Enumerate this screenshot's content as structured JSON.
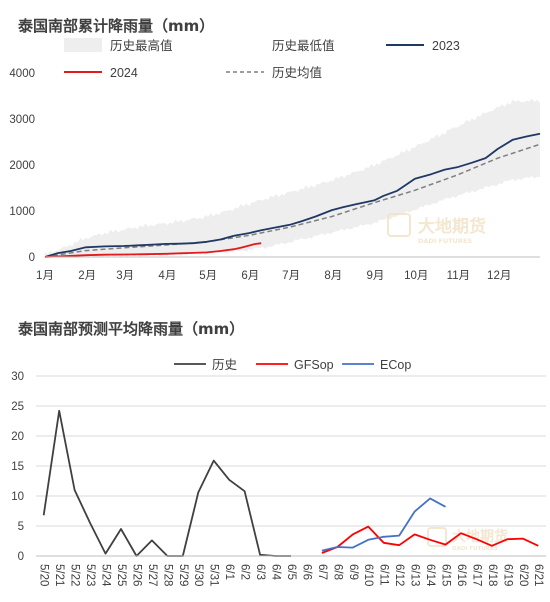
{
  "chart_data": [
    {
      "type": "area",
      "title": "泰国南部累计降雨量（mm）",
      "ylim": [
        0,
        4000
      ],
      "yticks": [
        0,
        1000,
        2000,
        3000,
        4000
      ],
      "x_unit": "day_of_year",
      "month_labels": [
        "1月",
        "2月",
        "3月",
        "4月",
        "5月",
        "6月",
        "7月",
        "8月",
        "9月",
        "10月",
        "11月",
        "12月"
      ],
      "grid": false,
      "legend_placement": "top",
      "watermark": "大地期货",
      "watermark_sub": "DADI FUTURES",
      "series": [
        {
          "name": "历史最高值",
          "style": "band_upper",
          "color": "#eeeeee",
          "x": [
            1,
            15,
            30,
            45,
            60,
            75,
            90,
            105,
            120,
            135,
            150,
            165,
            180,
            195,
            210,
            225,
            240,
            255,
            270,
            285,
            300,
            315,
            330,
            345,
            365
          ],
          "values": [
            60,
            200,
            400,
            520,
            600,
            680,
            730,
            800,
            880,
            1000,
            1150,
            1280,
            1400,
            1520,
            1650,
            1800,
            1960,
            2150,
            2350,
            2560,
            2780,
            2990,
            3200,
            3380,
            3400
          ]
        },
        {
          "name": "历史最低值",
          "style": "band_lower",
          "color": "#ffffff",
          "x": [
            1,
            15,
            30,
            45,
            60,
            75,
            90,
            105,
            120,
            135,
            150,
            165,
            180,
            195,
            210,
            225,
            240,
            255,
            270,
            285,
            300,
            315,
            330,
            345,
            365
          ],
          "values": [
            0,
            0,
            0,
            10,
            20,
            30,
            40,
            60,
            80,
            100,
            150,
            220,
            320,
            420,
            520,
            620,
            720,
            850,
            1000,
            1150,
            1300,
            1420,
            1550,
            1680,
            1750
          ]
        },
        {
          "name": "2023",
          "style": "line",
          "color": "#203864",
          "x": [
            1,
            10,
            20,
            31,
            45,
            59,
            70,
            80,
            90,
            100,
            110,
            120,
            130,
            140,
            151,
            160,
            170,
            181,
            190,
            200,
            212,
            220,
            230,
            243,
            250,
            260,
            273,
            285,
            295,
            304,
            315,
            325,
            334,
            345,
            355,
            365
          ],
          "values": [
            0,
            80,
            130,
            210,
            230,
            240,
            255,
            270,
            285,
            290,
            300,
            330,
            380,
            460,
            520,
            580,
            640,
            700,
            780,
            880,
            1020,
            1080,
            1150,
            1230,
            1330,
            1440,
            1700,
            1800,
            1900,
            1950,
            2050,
            2150,
            2350,
            2550,
            2620,
            2680
          ]
        },
        {
          "name": "历史均值",
          "style": "dashed",
          "color": "#7f7f7f",
          "x": [
            1,
            31,
            59,
            90,
            120,
            151,
            181,
            212,
            243,
            273,
            304,
            334,
            365
          ],
          "values": [
            0,
            140,
            200,
            260,
            330,
            470,
            650,
            880,
            1180,
            1450,
            1780,
            2150,
            2450
          ]
        },
        {
          "name": "2024",
          "style": "line",
          "color": "#e31a1c",
          "x": [
            1,
            15,
            31,
            45,
            60,
            75,
            90,
            100,
            110,
            120,
            130,
            140,
            145,
            150,
            155,
            160
          ],
          "values": [
            0,
            20,
            40,
            50,
            55,
            60,
            70,
            80,
            90,
            100,
            130,
            170,
            200,
            240,
            280,
            300
          ]
        }
      ]
    },
    {
      "type": "line",
      "title": "泰国南部预测平均降雨量（mm）",
      "ylim": [
        0,
        30
      ],
      "yticks": [
        0,
        5,
        10,
        15,
        20,
        25,
        30
      ],
      "categories": [
        "5/20",
        "5/21",
        "5/22",
        "5/23",
        "5/24",
        "5/25",
        "5/26",
        "5/27",
        "5/28",
        "5/29",
        "5/30",
        "5/31",
        "6/1",
        "6/2",
        "6/3",
        "6/4",
        "6/5",
        "6/6",
        "6/7",
        "6/8",
        "6/9",
        "6/10",
        "6/11",
        "6/12",
        "6/13",
        "6/14",
        "6/15",
        "6/16",
        "6/17",
        "6/18",
        "6/19",
        "6/20",
        "6/21"
      ],
      "grid": true,
      "legend_placement": "top",
      "watermark": "大地期货",
      "watermark_sub": "DADI FUTURES",
      "series": [
        {
          "name": "历史",
          "color": "#404040",
          "values": [
            6.8,
            24.2,
            11.0,
            5.5,
            0.4,
            4.5,
            0.0,
            2.6,
            0.0,
            0.0,
            10.6,
            15.9,
            12.7,
            10.8,
            0.2,
            0.0,
            0.0,
            null,
            null,
            null,
            null,
            null,
            null,
            null,
            null,
            null,
            null,
            null,
            null,
            null,
            null,
            null,
            null
          ]
        },
        {
          "name": "GFSop",
          "color": "#ff0000",
          "values": [
            null,
            null,
            null,
            null,
            null,
            null,
            null,
            null,
            null,
            null,
            null,
            null,
            null,
            null,
            null,
            null,
            null,
            null,
            0.5,
            1.5,
            3.6,
            4.9,
            2.2,
            1.8,
            3.6,
            2.7,
            1.9,
            3.8,
            2.8,
            1.7,
            2.8,
            2.9,
            1.7
          ]
        },
        {
          "name": "ECop",
          "color": "#4472c4",
          "values": [
            null,
            null,
            null,
            null,
            null,
            null,
            null,
            null,
            null,
            null,
            null,
            null,
            null,
            null,
            null,
            null,
            null,
            null,
            0.9,
            1.5,
            1.4,
            2.7,
            3.2,
            3.4,
            7.4,
            9.6,
            8.2,
            null,
            null,
            null,
            null,
            null,
            null
          ]
        }
      ]
    }
  ]
}
